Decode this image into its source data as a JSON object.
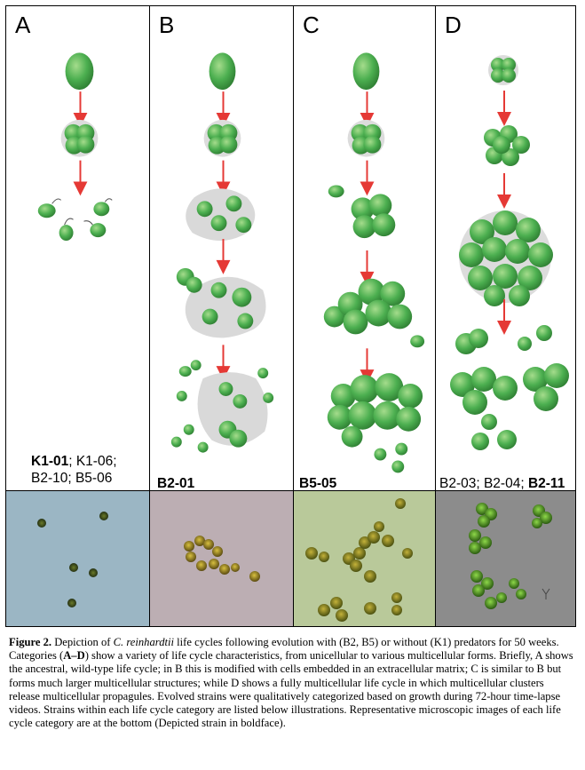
{
  "panels": [
    {
      "label": "A",
      "strains": [
        "K1-01",
        "; K1-06;",
        "B2-10; B5-06"
      ]
    },
    {
      "label": "B",
      "strains": [
        "B2-01"
      ]
    },
    {
      "label": "C",
      "strains": [
        "B5-05"
      ]
    },
    {
      "label": "D",
      "strains": [
        "B2-03; B2-04; ",
        "B2-11"
      ]
    }
  ],
  "caption": {
    "figure_label": "Figure 2.",
    "t1": " Depiction of ",
    "species": "C. reinhardtii",
    "t2": " life cycles following evolution with (B2, B5) or without (K1) predators for 50 weeks. Categories (",
    "cat": "A–D",
    "t3": ") show a variety of life cycle characteristics, from unicellular to various multicellular forms. Briefly, A shows the ancestral, wild-type life cycle; in B this is modified with cells embedded in an extracellular matrix; C is similar to B but forms much larger multicellular structures; while D shows a fully multicellular life cycle in which multicellular clusters release multicellular propagules. Evolved strains were qualitatively categorized based on growth during 72-hour time-lapse videos. Strains within each life cycle category are listed below illustrations. Representative microscopic images of each life cycle category are at the bottom (Depicted strain in boldface)."
  },
  "colors": {
    "cell": "#4caf50",
    "cell_dark": "#2e7d32",
    "arrow": "#e53935",
    "matrix": "#d9d9d9"
  }
}
